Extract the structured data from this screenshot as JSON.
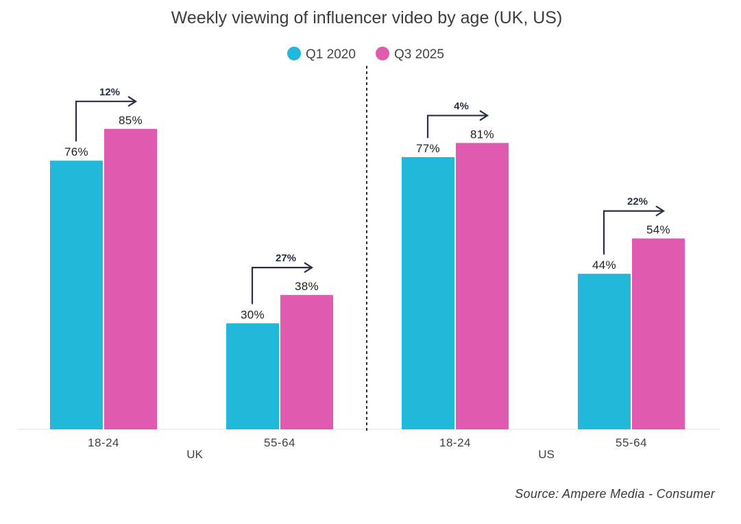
{
  "chart_data": {
    "type": "bar",
    "title": "Weekly viewing of influencer video by age (UK, US)",
    "series": [
      {
        "name": "Q1 2020",
        "color": "#22b8db"
      },
      {
        "name": "Q3 2025",
        "color": "#e05ab0"
      }
    ],
    "groups": [
      {
        "label": "UK",
        "categories": [
          {
            "label": "18-24",
            "values": [
              76,
              85
            ],
            "value_labels": [
              "76%",
              "85%"
            ],
            "change_label": "12%"
          },
          {
            "label": "55-64",
            "values": [
              30,
              38
            ],
            "value_labels": [
              "30%",
              "38%"
            ],
            "change_label": "27%"
          }
        ]
      },
      {
        "label": "US",
        "categories": [
          {
            "label": "18-24",
            "values": [
              77,
              81
            ],
            "value_labels": [
              "77%",
              "81%"
            ],
            "change_label": "4%"
          },
          {
            "label": "55-64",
            "values": [
              44,
              54
            ],
            "value_labels": [
              "44%",
              "54%"
            ],
            "change_label": "22%"
          }
        ]
      }
    ],
    "ylim": [
      0,
      100
    ],
    "grid": false,
    "legend_position": "top-center",
    "source": "Source: Ampere Media - Consumer"
  }
}
